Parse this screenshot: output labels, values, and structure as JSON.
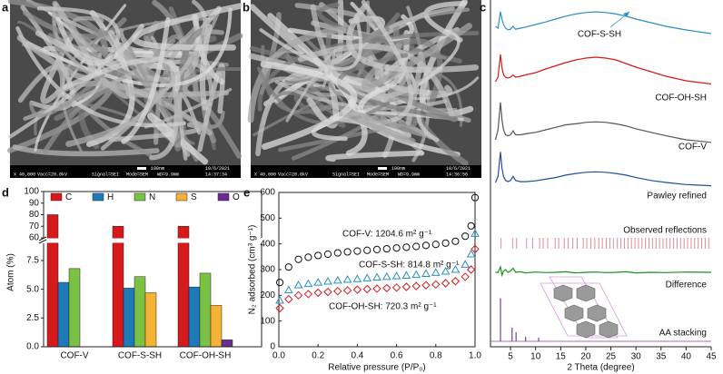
{
  "panels": {
    "a": {
      "label": "a",
      "scale_bar": "100nm",
      "info": [
        "X 40,000",
        "Vacc=20.0kV",
        "Signal=SEI",
        "Mode=SEM",
        "WD=9.9mm",
        "10/6/2021",
        "14:37:34"
      ]
    },
    "b": {
      "label": "b",
      "scale_bar": "100nm",
      "info": [
        "X 40,000",
        "Vacc=20.0kV",
        "Signal=SEI",
        "Mode=SEM",
        "WD=9.9mm",
        "10/6/2021",
        "14:36:56"
      ]
    }
  },
  "chart_data": [
    {
      "label": "c",
      "type": "line",
      "xlabel": "2 Theta (degree)",
      "xlim": [
        1,
        45
      ],
      "xticks": [
        5,
        10,
        15,
        20,
        25,
        30,
        35,
        40,
        45
      ],
      "x": [
        2,
        2.5,
        3,
        3.3,
        3.6,
        4,
        4.5,
        5,
        5.5,
        6,
        7,
        8,
        10,
        12,
        14,
        16,
        18,
        20,
        22,
        24,
        26,
        28,
        30,
        33,
        36,
        40,
        45
      ],
      "series": [
        {
          "name": "COF-S-SH",
          "color": "#2a8ec4",
          "values": [
            40,
            35,
            80,
            60,
            45,
            35,
            30,
            32,
            40,
            32,
            35,
            38,
            45,
            52,
            60,
            68,
            74,
            78,
            80,
            78,
            74,
            68,
            60,
            50,
            40,
            30,
            20
          ]
        },
        {
          "name": "COF-OH-SH",
          "color": "#d7191c",
          "values": [
            30,
            40,
            90,
            60,
            45,
            40,
            38,
            40,
            45,
            40,
            42,
            45,
            50,
            58,
            65,
            72,
            78,
            82,
            84,
            82,
            78,
            70,
            62,
            52,
            42,
            32,
            25
          ]
        },
        {
          "name": "COF-V",
          "color": "#555555",
          "values": [
            20,
            40,
            95,
            60,
            40,
            30,
            28,
            30,
            38,
            30,
            30,
            32,
            35,
            40,
            45,
            50,
            52,
            55,
            56,
            55,
            52,
            48,
            42,
            35,
            28,
            20,
            15
          ]
        },
        {
          "name": "Pawley refined",
          "color": "#1f4e9c",
          "values": [
            20,
            35,
            95,
            55,
            35,
            25,
            22,
            25,
            35,
            25,
            22,
            22,
            24,
            28,
            32,
            38,
            42,
            45,
            46,
            45,
            42,
            38,
            32,
            25,
            20,
            15,
            12
          ]
        },
        {
          "name": "Difference",
          "color": "#1a8f1a",
          "values": [
            50,
            50,
            70,
            40,
            55,
            60,
            50,
            55,
            65,
            50,
            52,
            48,
            51,
            49,
            50,
            52,
            48,
            50,
            51,
            49,
            50,
            52,
            48,
            50,
            49,
            51,
            50
          ]
        }
      ],
      "reflections": {
        "name": "Observed reflections",
        "color": "#e38a9a",
        "x": [
          3.1,
          5.4,
          6.2,
          8.2,
          9.4,
          10.8,
          11.5,
          12.4,
          13.9,
          14.6,
          15.7,
          16.5,
          17.4,
          18.3,
          19.5,
          20.2,
          21.0,
          21.8,
          22.6,
          23.3,
          24.1,
          24.8,
          25.5,
          26.3,
          27.0,
          27.7,
          28.4,
          29.1,
          29.8,
          30.5,
          31.2,
          31.9,
          32.6,
          33.3,
          34.0,
          34.7,
          35.4,
          36.1,
          36.8,
          37.5,
          38.2,
          38.9,
          39.6,
          40.3,
          41.0,
          41.7,
          42.4,
          43.1,
          43.8,
          44.5
        ]
      },
      "sticks": {
        "name": "AA stacking",
        "color": "#7b3fa0",
        "x": [
          3.0,
          5.3,
          6.1,
          8.0,
          10.6
        ],
        "values": [
          95,
          30,
          20,
          10,
          8
        ]
      }
    },
    {
      "label": "d",
      "type": "bar",
      "ylabel": "Atom (%)",
      "categories": [
        "COF-V",
        "COF-S-SH",
        "COF-OH-SH"
      ],
      "series": [
        {
          "name": "C",
          "color": "#d7191c",
          "values": [
            80,
            70,
            70
          ]
        },
        {
          "name": "H",
          "color": "#1f7ab8",
          "values": [
            5.6,
            5.1,
            5.2
          ]
        },
        {
          "name": "N",
          "color": "#7cc242",
          "values": [
            6.8,
            6.1,
            6.4
          ]
        },
        {
          "name": "S",
          "color": "#f5b335",
          "values": [
            null,
            4.7,
            3.6
          ]
        },
        {
          "name": "O",
          "color": "#6a2c91",
          "values": [
            null,
            null,
            0.6
          ]
        }
      ],
      "ylim": [
        0,
        9
      ],
      "yticks": [
        {
          "value": 0,
          "label": "0.0"
        },
        2.5,
        {
          "value": 5,
          "label": "5.0"
        },
        7.5
      ],
      "ylim_upper": [
        60,
        100
      ],
      "yticks_upper": [
        60,
        70,
        80,
        90,
        100
      ]
    },
    {
      "label": "e",
      "type": "scatter",
      "xlabel": "Relative pressure (P/P₀)",
      "ylabel": "N₂ adsorbed (cm³ g⁻¹)",
      "xlim": [
        0,
        1
      ],
      "xticks": [
        {
          "value": 0,
          "label": "0.0"
        },
        0.2,
        0.4,
        0.6,
        0.8,
        {
          "value": 1,
          "label": "1.0"
        }
      ],
      "ylim": [
        0,
        600
      ],
      "yticks": [
        0,
        100,
        200,
        300,
        400,
        500,
        600
      ],
      "x": [
        0.005,
        0.05,
        0.1,
        0.15,
        0.2,
        0.25,
        0.3,
        0.35,
        0.4,
        0.45,
        0.5,
        0.55,
        0.6,
        0.65,
        0.7,
        0.75,
        0.8,
        0.85,
        0.9,
        0.95,
        0.98,
        1.0
      ],
      "series": [
        {
          "color": "#111111",
          "marker": "circle",
          "values": [
            250,
            310,
            340,
            348,
            355,
            360,
            365,
            369,
            372,
            375,
            378,
            381,
            384,
            387,
            390,
            394,
            398,
            403,
            410,
            430,
            470,
            580
          ]
        },
        {
          "color": "#2a8ec4",
          "marker": "triangle",
          "values": [
            180,
            220,
            240,
            245,
            250,
            254,
            258,
            261,
            264,
            267,
            270,
            272,
            275,
            277,
            280,
            284,
            288,
            293,
            300,
            320,
            360,
            440
          ]
        },
        {
          "color": "#d7191c",
          "marker": "diamond",
          "values": [
            150,
            185,
            200,
            205,
            210,
            213,
            216,
            219,
            222,
            224,
            226,
            228,
            230,
            233,
            236,
            239,
            242,
            247,
            255,
            272,
            300,
            380
          ]
        }
      ],
      "annotations": [
        "COF-V: 1204.6 m² g⁻¹",
        "COF-S-SH: 814.8 m² g⁻¹",
        "COF-OH-SH: 720.3 m² g⁻¹"
      ]
    }
  ]
}
